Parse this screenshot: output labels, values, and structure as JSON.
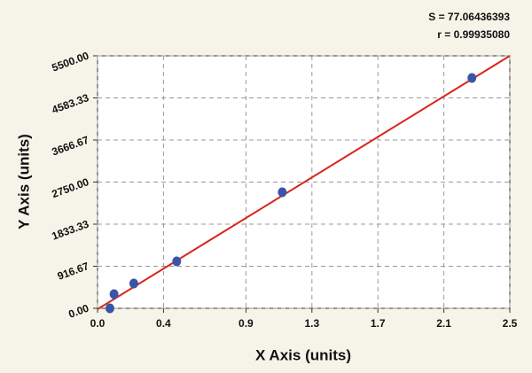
{
  "chart_data": {
    "type": "scatter",
    "annotations": [
      "S = 77.06436393",
      "r = 0.99935080"
    ],
    "x_label": "X Axis (units)",
    "y_label": "Y Axis (units)",
    "series": [
      {
        "color": "#3b54a6",
        "x": [
          0.075,
          0.1,
          0.22,
          0.48,
          1.12,
          2.27
        ],
        "values": [
          0,
          309,
          540,
          1023,
          2528,
          5017
        ]
      }
    ],
    "fit_line": {
      "color": "#d9261c",
      "x": [
        0,
        2.5
      ],
      "values": [
        -20,
        5500
      ]
    },
    "xlim": [
      0,
      2.5
    ],
    "xticks": [
      {
        "value": 0,
        "label": "0.0"
      },
      0.4,
      0.9,
      1.3,
      1.7,
      2.1,
      2.5
    ],
    "ylim": [
      0,
      5500
    ],
    "yticks": [
      {
        "value": 0,
        "label": "0.00"
      },
      916.67,
      1833.33,
      {
        "value": 2750,
        "label": "2750.00"
      },
      3666.67,
      4583.33,
      {
        "value": 5500,
        "label": "5500.00"
      }
    ],
    "grid": true
  }
}
